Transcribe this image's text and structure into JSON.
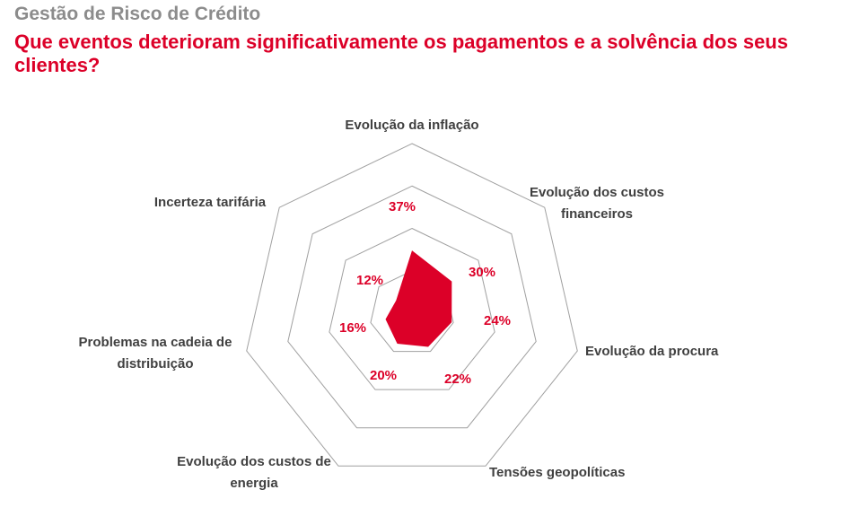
{
  "header": {
    "title": "Gestão de Risco de Crédito",
    "subtitle": "Que eventos deterioram significativamente os pagamentos e a solvência dos seus clientes?"
  },
  "chart_data": {
    "type": "radar",
    "categories": [
      "Evolução da inflação",
      "Evolução dos custos financeiros",
      "Evolução da procura",
      "Tensões geopolíticas",
      "Evolução dos custos de energia",
      "Problemas na cadeia de distribuição",
      "Incerteza tarifária"
    ],
    "values": [
      37,
      30,
      24,
      22,
      20,
      16,
      12
    ],
    "data_labels": [
      "37%",
      "30%",
      "24%",
      "22%",
      "20%",
      "16%",
      "12%"
    ],
    "rlim": [
      0,
      100
    ],
    "grid_rings": [
      25,
      50,
      75,
      100
    ],
    "series_color": "#dc0028",
    "grid_color": "#a0a0a0"
  }
}
